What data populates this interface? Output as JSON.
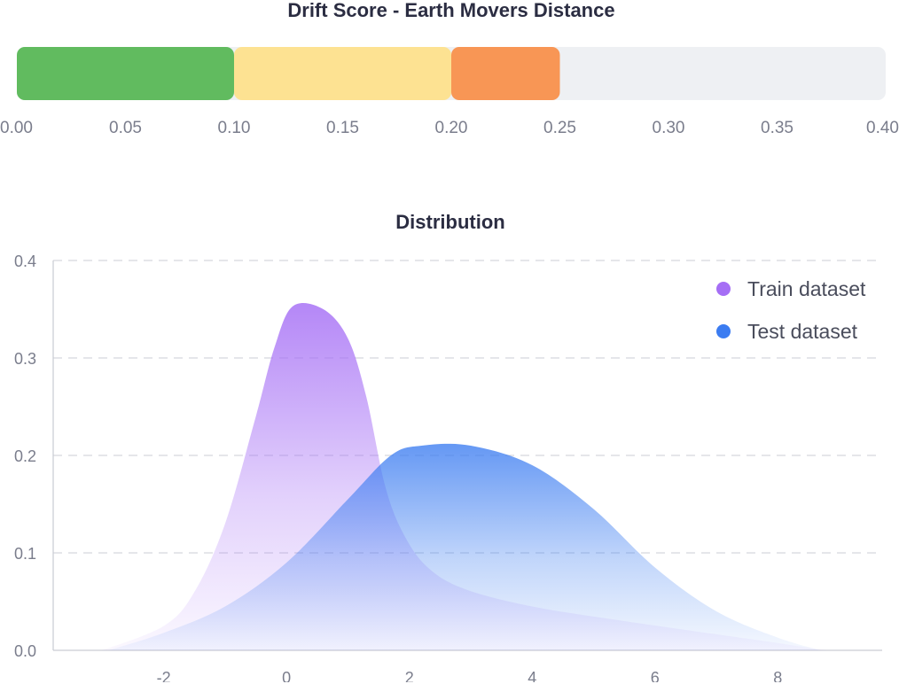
{
  "chart_data": [
    {
      "type": "bar",
      "title": "Drift Score - Earth Movers Distance",
      "xlim": [
        0,
        0.4
      ],
      "ticks": [
        "0.00",
        "0.05",
        "0.10",
        "0.15",
        "0.20",
        "0.25",
        "0.30",
        "0.35",
        "0.40"
      ],
      "segments": [
        {
          "start": 0.0,
          "end": 0.1,
          "color": "#61bb5f"
        },
        {
          "start": 0.1,
          "end": 0.2,
          "color": "#fde292"
        },
        {
          "start": 0.2,
          "end": 0.25,
          "color": "#f89655"
        }
      ],
      "track_color": "#eef0f3"
    },
    {
      "type": "area",
      "title": "Distribution",
      "xlim": [
        -3.8,
        9.7
      ],
      "ylim": [
        0,
        0.4
      ],
      "x_ticks": [
        "-2",
        "0",
        "2",
        "4",
        "6",
        "8"
      ],
      "y_ticks": [
        "0.0",
        "0.1",
        "0.2",
        "0.3",
        "0.4"
      ],
      "grid": true,
      "legend_position": "top-right",
      "series": [
        {
          "name": "Train dataset",
          "color": "#a56ef5",
          "points": [
            [
              -3.0,
              0.0
            ],
            [
              -2.0,
              0.025
            ],
            [
              -1.5,
              0.06
            ],
            [
              -1.0,
              0.13
            ],
            [
              -0.5,
              0.24
            ],
            [
              -0.2,
              0.31
            ],
            [
              0.1,
              0.353
            ],
            [
              0.6,
              0.35
            ],
            [
              1.0,
              0.32
            ],
            [
              1.3,
              0.26
            ],
            [
              1.6,
              0.17
            ],
            [
              1.9,
              0.12
            ],
            [
              2.3,
              0.085
            ],
            [
              2.9,
              0.063
            ],
            [
              4.0,
              0.045
            ],
            [
              5.5,
              0.03
            ],
            [
              7.5,
              0.012
            ],
            [
              8.8,
              0.0
            ]
          ]
        },
        {
          "name": "Test dataset",
          "color": "#3b7cf1",
          "points": [
            [
              -2.9,
              0.0
            ],
            [
              -2.0,
              0.018
            ],
            [
              -1.0,
              0.045
            ],
            [
              0.0,
              0.09
            ],
            [
              1.0,
              0.155
            ],
            [
              1.7,
              0.2
            ],
            [
              2.2,
              0.21
            ],
            [
              3.0,
              0.21
            ],
            [
              4.0,
              0.19
            ],
            [
              5.0,
              0.145
            ],
            [
              6.0,
              0.085
            ],
            [
              7.0,
              0.04
            ],
            [
              8.0,
              0.013
            ],
            [
              8.7,
              0.0
            ]
          ]
        }
      ]
    }
  ]
}
